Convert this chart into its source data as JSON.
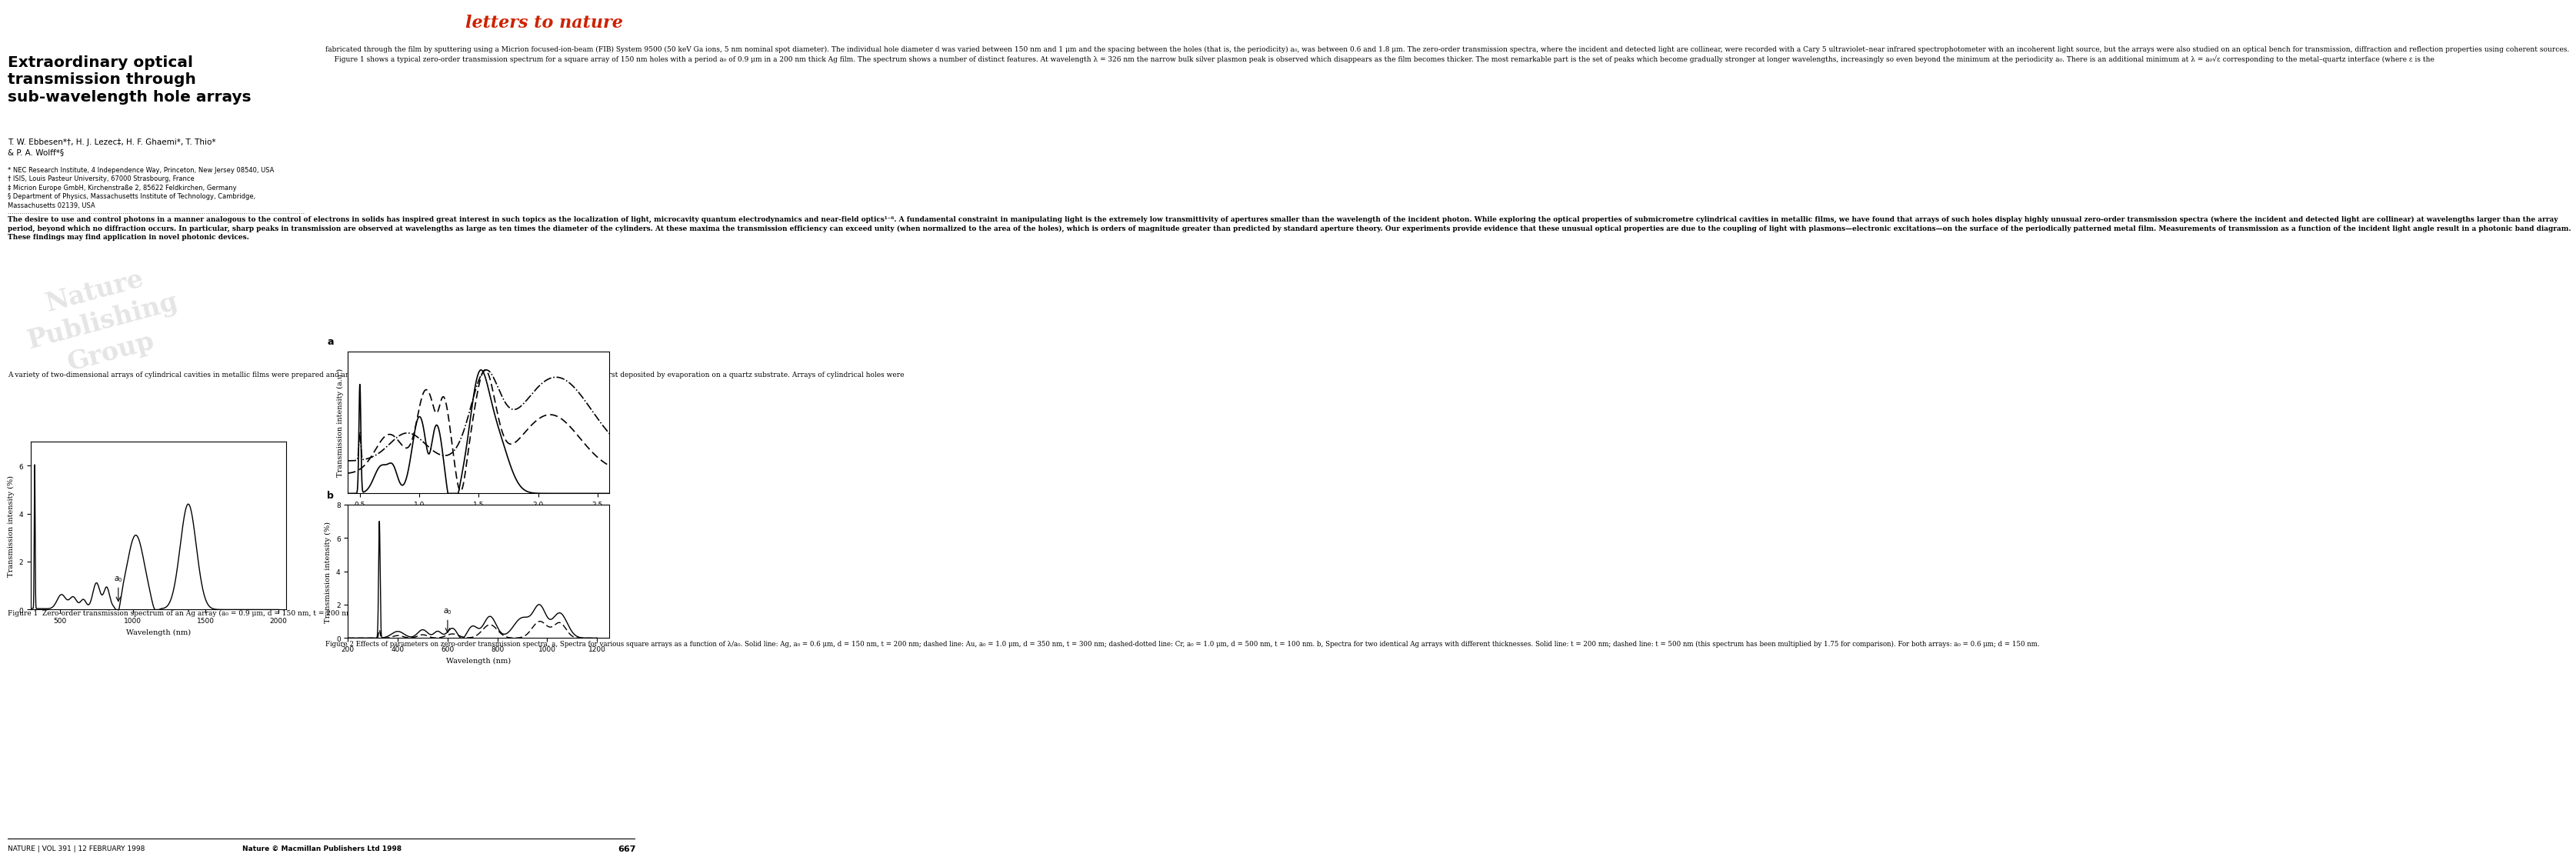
{
  "page_width": 8.5,
  "page_height": 11.19,
  "bg_color": "#ffffff",
  "header_text": "letters to nature",
  "header_color": "#cc0000",
  "header_bar_color": "#000000",
  "gray_bar_color": "#aaaaaa",
  "title": "Extraordinary optical\ntransmission through\nsub-wavelength hole arrays",
  "authors": "T. W. Ebbesen*†, H. J. Lezec‡, H. F. Ghaemi*, T. Thio*\n& P. A. Wolff*§",
  "affiliations": "* NEC Research Institute, 4 Independence Way, Princeton, New Jersey 08540, USA\n† ISIS, Louis Pasteur University, 67000 Strasbourg, France\n‡ Micrion Europe GmbH, Kirchenstraße 2, 85622 Feldkirchen, Germany\n§ Department of Physics, Massachusetts Institute of Technology, Cambridge,\nMassachusetts 02139, USA",
  "abstract": "The desire to use and control photons in a manner analogous to the control of electrons in solids has inspired great interest in such topics as the localization of light, microcavity quantum electrodynamics and near-field optics¹⁻⁶. A fundamental constraint in manipulating light is the extremely low transmittivity of apertures smaller than the wavelength of the incident photon. While exploring the optical properties of submicrometre cylindrical cavities in metallic films, we have found that arrays of such holes display highly unusual zero-order transmission spectra (where the incident and detected light are collinear) at wavelengths larger than the array period, beyond which no diffraction occurs. In particular, sharp peaks in transmission are observed at wavelengths as large as ten times the diameter of the cylinders. At these maxima the transmission efficiency can exceed unity (when normalized to the area of the holes), which is orders of magnitude greater than predicted by standard aperture theory. Our experiments provide evidence that these unusual optical properties are due to the coupling of light with plasmons—electronic excitations—on the surface of the periodically patterned metal film. Measurements of transmission as a function of the incident light angle result in a photonic band diagram. These findings may find application in novel photonic devices.",
  "right_col_text1": "fabricated through the film by sputtering using a Micrion focused-ion-beam (FIB) System 9500 (50 keV Ga ions, 5 nm nominal spot diameter). The individual hole diameter d was varied between 150 nm and 1 μm and the spacing between the holes (that is, the periodicity) a₀, was between 0.6 and 1.8 μm. The zero-order transmission spectra, where the incident and detected light are collinear, were recorded with a Cary 5 ultraviolet–near infrared spectrophotometer with an incoherent light source, but the arrays were also studied on an optical bench for transmission, diffraction and reflection properties using coherent sources.\n    Figure 1 shows a typical zero-order transmission spectrum for a square array of 150 nm holes with a period a₀ of 0.9 μm in a 200 nm thick Ag film. The spectrum shows a number of distinct features. At wavelength λ = 326 nm the narrow bulk silver plasmon peak is observed which disappears as the film becomes thicker. The most remarkable part is the set of peaks which become gradually stronger at longer wavelengths, increasingly so even beyond the minimum at the periodicity a₀. There is an additional minimum at λ = a₀√ε corresponding to the metal–quartz interface (where ε is the",
  "body_text_left": "A variety of two-dimensional arrays of cylindrical cavities in metallic films were prepared and analysed for this study. Typically, a silver film of thickness t = 0.2 μm was first deposited by evaporation on a quartz substrate. Arrays of cylindrical holes were",
  "fig1_caption": "Figure 1  Zero-order transmission spectrum of an Ag array (a₀ = 0.9 μm, d = 150 nm, t = 200 nm).",
  "fig2_caption": "Figure 2 Effects of parameters on zero-order transmission spectra. a, Spectra for various square arrays as a function of λ/a₀. Solid line: Ag, a₀ = 0.6 μm, d = 150 nm, t = 200 nm; dashed line: Au, a₀ = 1.0 μm, d = 350 nm, t = 300 nm; dashed-dotted line: Cr, a₀ = 1.0 μm, d = 500 nm, t = 100 nm. b, Spectra for two identical Ag arrays with different thicknesses. Solid line: t = 200 nm; dashed line: t = 500 nm (this spectrum has been multiplied by 1.75 for comparison). For both arrays: a₀ = 0.6 μm; d = 150 nm.",
  "footer_left": "NATURE | VOL 391 | 12 FEBRUARY 1998",
  "footer_right": "Nature © Macmillan Publishers Ltd 1998",
  "footer_page": "667",
  "watermark": "Nature\nPublishing\nGroup"
}
